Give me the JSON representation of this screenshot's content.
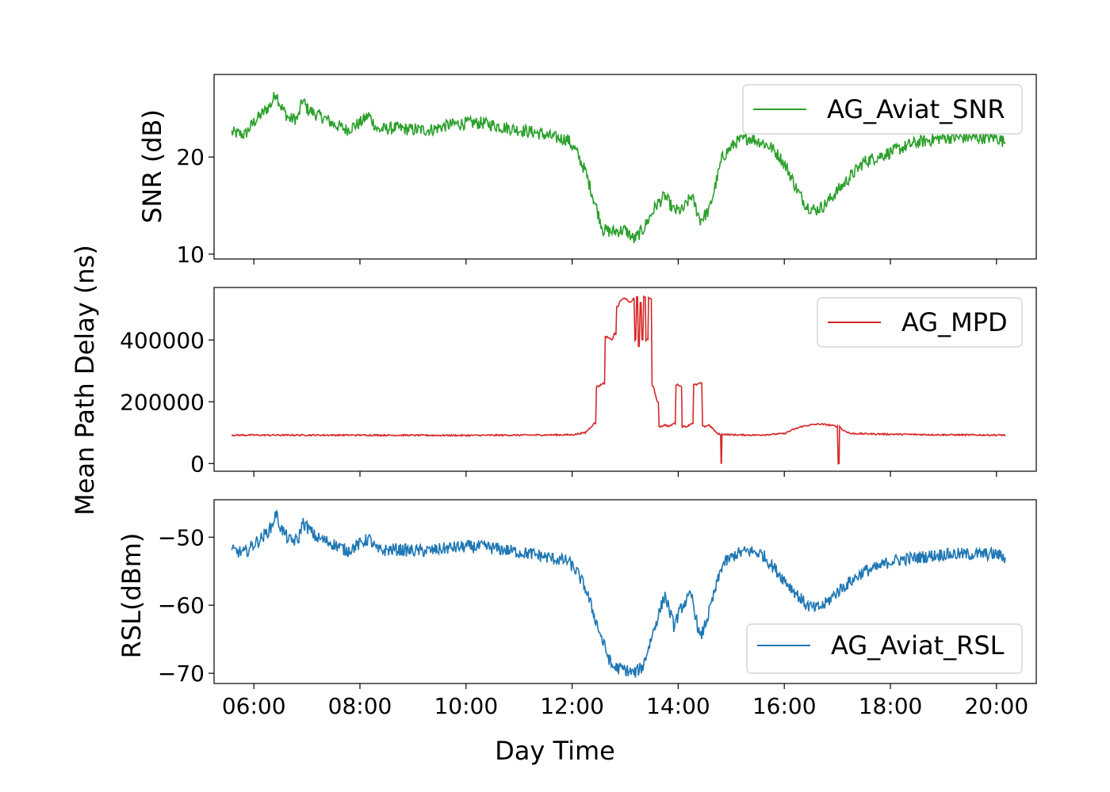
{
  "figure": {
    "xlabel": "Day Time",
    "shared_ylabel": "Mean Path Delay (ns)"
  },
  "chart_data": [
    {
      "type": "line",
      "panel": "top",
      "ylabel": "SNR (dB)",
      "xlim": [
        "05:15",
        "20:45"
      ],
      "ylim": [
        9.5,
        28.5
      ],
      "yticks": [
        10,
        20
      ],
      "ytick_labels": [
        "10",
        "20"
      ],
      "grid": false,
      "legend": "top-right",
      "series": [
        {
          "name": "AG_Aviat_SNR",
          "color": "#2ca02c",
          "x": [
            "05:35",
            "05:50",
            "06:00",
            "06:10",
            "06:20",
            "06:25",
            "06:30",
            "06:40",
            "06:50",
            "06:55",
            "07:00",
            "07:10",
            "07:20",
            "07:30",
            "07:45",
            "08:00",
            "08:10",
            "08:20",
            "08:40",
            "09:00",
            "09:20",
            "09:40",
            "10:00",
            "10:20",
            "10:40",
            "11:00",
            "11:20",
            "11:40",
            "11:55",
            "12:05",
            "12:15",
            "12:25",
            "12:35",
            "12:45",
            "13:00",
            "13:10",
            "13:20",
            "13:35",
            "13:45",
            "13:55",
            "14:05",
            "14:15",
            "14:25",
            "14:35",
            "14:50",
            "15:05",
            "15:20",
            "15:35",
            "15:45",
            "15:55",
            "16:05",
            "16:15",
            "16:25",
            "16:35",
            "16:45",
            "17:00",
            "17:15",
            "17:30",
            "17:45",
            "18:00",
            "18:30",
            "19:00",
            "19:30",
            "20:00",
            "20:10"
          ],
          "values": [
            22.5,
            22.3,
            23.6,
            24.5,
            25.5,
            26.7,
            25.3,
            23.9,
            24.0,
            25.9,
            25.0,
            24.4,
            24.0,
            23.4,
            22.8,
            23.5,
            24.3,
            22.8,
            23.0,
            22.8,
            22.8,
            23.3,
            23.5,
            23.5,
            23.1,
            22.8,
            22.5,
            22.0,
            21.8,
            20.5,
            18.5,
            15.5,
            12.5,
            12.3,
            12.5,
            11.5,
            12.5,
            15.0,
            16.0,
            14.5,
            14.5,
            16.0,
            13.5,
            14.5,
            20.0,
            21.5,
            22.0,
            21.5,
            21.0,
            20.0,
            18.5,
            16.5,
            15.0,
            14.5,
            15.0,
            16.5,
            18.0,
            19.5,
            20.0,
            20.5,
            21.5,
            22.0,
            22.0,
            22.0,
            21.5
          ]
        }
      ]
    },
    {
      "type": "line",
      "panel": "middle",
      "ylabel": "",
      "xlim": [
        "05:15",
        "20:45"
      ],
      "ylim": [
        -25000,
        570000
      ],
      "yticks": [
        0,
        200000,
        400000
      ],
      "ytick_labels": [
        "0",
        "200000",
        "400000"
      ],
      "grid": false,
      "legend": "top-right",
      "series": [
        {
          "name": "AG_MPD",
          "color": "#d62728",
          "x": [
            "05:35",
            "08:00",
            "10:00",
            "11:00",
            "12:00",
            "12:15",
            "12:25",
            "12:30",
            "12:35",
            "12:40",
            "12:45",
            "12:48",
            "12:52",
            "12:55",
            "13:00",
            "13:05",
            "13:10",
            "13:12",
            "13:14",
            "13:16",
            "13:18",
            "13:20",
            "13:22",
            "13:25",
            "13:28",
            "13:32",
            "13:36",
            "13:40",
            "13:45",
            "13:50",
            "13:55",
            "14:00",
            "14:03",
            "14:06",
            "14:10",
            "14:15",
            "14:20",
            "14:25",
            "14:30",
            "14:35",
            "14:40",
            "14:45",
            "14:48",
            "14:49",
            "14:50",
            "15:00",
            "15:30",
            "16:00",
            "16:10",
            "16:20",
            "16:30",
            "16:40",
            "16:50",
            "17:00",
            "17:02",
            "17:03",
            "17:05",
            "17:15",
            "18:00",
            "19:00",
            "20:10"
          ],
          "values": [
            92000,
            92000,
            91000,
            92000,
            93000,
            100000,
            130000,
            250000,
            260000,
            410000,
            400000,
            420000,
            510000,
            530000,
            535000,
            520000,
            535000,
            400000,
            540000,
            380000,
            520000,
            400000,
            540000,
            400000,
            535000,
            250000,
            200000,
            120000,
            125000,
            120000,
            130000,
            255000,
            250000,
            120000,
            120000,
            130000,
            255000,
            260000,
            120000,
            125000,
            110000,
            95000,
            95000,
            0,
            95000,
            93000,
            92000,
            97000,
            110000,
            120000,
            125000,
            128000,
            125000,
            120000,
            0,
            120000,
            110000,
            97000,
            95000,
            93000,
            92000
          ]
        }
      ]
    },
    {
      "type": "line",
      "panel": "bottom",
      "ylabel": "RSL(dBm)",
      "xlim": [
        "05:15",
        "20:45"
      ],
      "ylim": [
        -71.5,
        -44.5
      ],
      "yticks": [
        -70,
        -60,
        -50
      ],
      "ytick_labels": [
        "−70",
        "−60",
        "−50"
      ],
      "grid": false,
      "legend": "bottom-right",
      "series": [
        {
          "name": "AG_Aviat_RSL",
          "color": "#1f77b4",
          "x": [
            "05:35",
            "05:50",
            "06:00",
            "06:10",
            "06:20",
            "06:25",
            "06:30",
            "06:40",
            "06:50",
            "06:55",
            "07:00",
            "07:10",
            "07:20",
            "07:30",
            "07:45",
            "08:00",
            "08:10",
            "08:20",
            "08:40",
            "09:00",
            "09:20",
            "09:40",
            "10:00",
            "10:20",
            "10:40",
            "11:00",
            "11:20",
            "11:40",
            "11:55",
            "12:05",
            "12:15",
            "12:25",
            "12:35",
            "12:45",
            "13:00",
            "13:10",
            "13:20",
            "13:35",
            "13:45",
            "13:55",
            "14:05",
            "14:15",
            "14:25",
            "14:35",
            "14:50",
            "15:05",
            "15:20",
            "15:35",
            "15:45",
            "15:55",
            "16:05",
            "16:15",
            "16:25",
            "16:35",
            "16:45",
            "17:00",
            "17:15",
            "17:30",
            "17:45",
            "18:00",
            "18:30",
            "19:00",
            "19:30",
            "20:00",
            "20:10"
          ],
          "values": [
            -52.0,
            -52.3,
            -51.0,
            -50.0,
            -48.5,
            -46.5,
            -48.5,
            -50.5,
            -50.5,
            -47.8,
            -48.5,
            -50.0,
            -50.5,
            -51.0,
            -52.0,
            -51.0,
            -50.2,
            -52.0,
            -51.8,
            -52.0,
            -52.0,
            -51.6,
            -51.4,
            -51.4,
            -51.8,
            -52.2,
            -52.6,
            -53.2,
            -53.5,
            -55.0,
            -57.5,
            -61.5,
            -65.5,
            -69.0,
            -69.5,
            -70.0,
            -69.0,
            -62.5,
            -58.5,
            -63.0,
            -60.0,
            -58.5,
            -65.0,
            -61.0,
            -54.0,
            -52.5,
            -52.0,
            -52.5,
            -54.0,
            -55.5,
            -57.0,
            -58.5,
            -60.0,
            -60.5,
            -60.0,
            -58.0,
            -56.5,
            -55.0,
            -54.5,
            -53.5,
            -53.0,
            -52.5,
            -52.5,
            -52.5,
            -53.0
          ]
        }
      ]
    }
  ],
  "xaxis": {
    "tick_labels": [
      "06:00",
      "08:00",
      "10:00",
      "12:00",
      "14:00",
      "16:00",
      "18:00",
      "20:00"
    ]
  }
}
